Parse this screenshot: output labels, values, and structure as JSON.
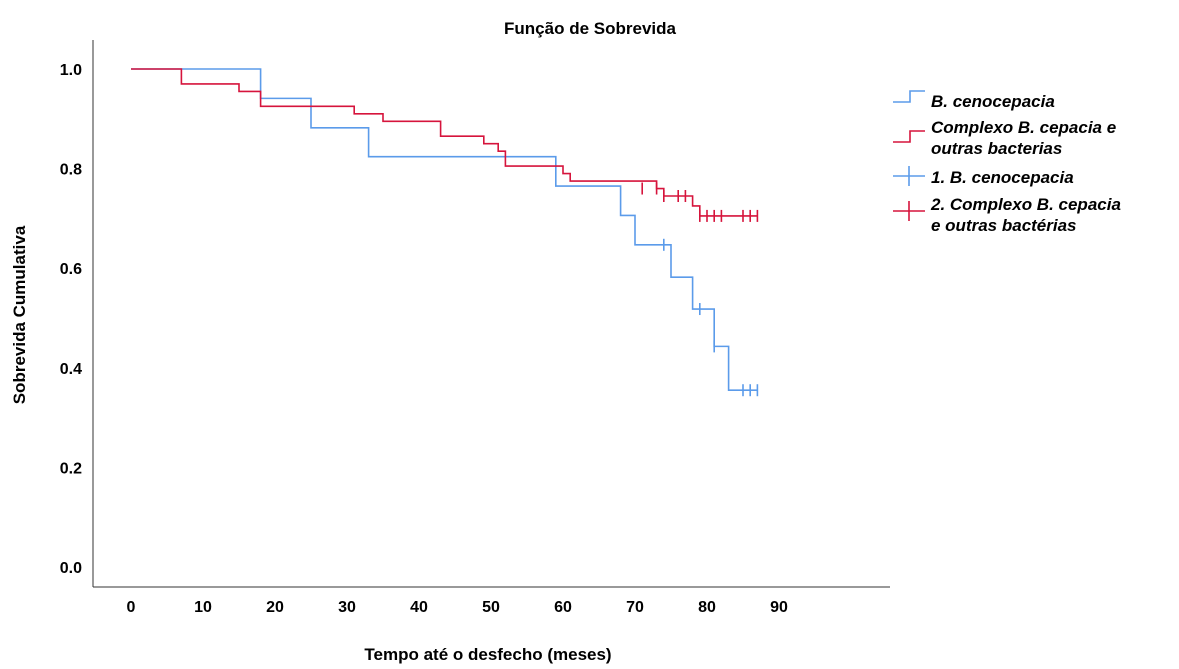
{
  "chart_data": {
    "type": "line",
    "subtype": "kaplan-meier-step",
    "title": "Função de Sobrevida",
    "xlabel": "Tempo até o desfecho (meses)",
    "ylabel": "Sobrevida Cumulativa",
    "xlim": [
      -5,
      95
    ],
    "ylim": [
      -0.05,
      1.07
    ],
    "xticks": [
      0,
      10,
      20,
      30,
      40,
      50,
      60,
      70,
      80,
      90
    ],
    "xtick_labels": [
      "0",
      "10",
      "20",
      "30",
      "40",
      "50",
      "60",
      "70",
      "80",
      "90"
    ],
    "yticks": [
      0.0,
      0.2,
      0.4,
      0.6,
      0.8,
      1.0
    ],
    "ytick_labels": [
      "0.0",
      "0.2",
      "0.4",
      "0.6",
      "0.8",
      "1.0"
    ],
    "grid": false,
    "legend_position": "right",
    "series": [
      {
        "name": "B. cenocepacia",
        "color": "#5b9bea",
        "steps": [
          [
            0,
            1.0
          ],
          [
            18,
            0.941
          ],
          [
            25,
            0.882
          ],
          [
            33,
            0.824
          ],
          [
            59,
            0.765
          ],
          [
            68,
            0.706
          ],
          [
            70,
            0.647
          ],
          [
            75,
            0.582
          ],
          [
            78,
            0.518
          ],
          [
            81,
            0.443
          ],
          [
            83,
            0.355
          ]
        ],
        "end_x": 87,
        "censored": [
          [
            74,
            0.647
          ],
          [
            79,
            0.518
          ],
          [
            81,
            0.443
          ],
          [
            85,
            0.355
          ],
          [
            86,
            0.355
          ],
          [
            87,
            0.355
          ]
        ]
      },
      {
        "name": "Complexo B. cepacia e outras bacterias",
        "color": "#d6143c",
        "steps": [
          [
            0,
            1.0
          ],
          [
            7,
            0.97
          ],
          [
            15,
            0.955
          ],
          [
            18,
            0.925
          ],
          [
            31,
            0.91
          ],
          [
            35,
            0.895
          ],
          [
            43,
            0.865
          ],
          [
            49,
            0.85
          ],
          [
            51,
            0.835
          ],
          [
            52,
            0.805
          ],
          [
            60,
            0.79
          ],
          [
            61,
            0.775
          ],
          [
            73,
            0.76
          ],
          [
            74,
            0.745
          ],
          [
            78,
            0.725
          ],
          [
            79,
            0.705
          ]
        ],
        "end_x": 87,
        "censored": [
          [
            71,
            0.76
          ],
          [
            73,
            0.76
          ],
          [
            74,
            0.745
          ],
          [
            76,
            0.745
          ],
          [
            77,
            0.745
          ],
          [
            79,
            0.705
          ],
          [
            80,
            0.705
          ],
          [
            81,
            0.705
          ],
          [
            82,
            0.705
          ],
          [
            85,
            0.705
          ],
          [
            86,
            0.705
          ],
          [
            87,
            0.705
          ]
        ]
      }
    ],
    "legend": [
      {
        "label": "B. cenocepacia",
        "color": "#5b9bea",
        "kind": "step"
      },
      {
        "label": "Complexo B. cepacia e outras bacterias",
        "lines": [
          "Complexo B. cepacia e",
          "outras bacterias"
        ],
        "color": "#d6143c",
        "kind": "step"
      },
      {
        "label": "1. B. cenocepacia",
        "color": "#5b9bea",
        "kind": "censor"
      },
      {
        "label": "2. Complexo B. cepacia e outras bactérias",
        "lines": [
          "2. Complexo B. cepacia",
          "e outras bactérias"
        ],
        "color": "#d6143c",
        "kind": "censor"
      }
    ]
  }
}
